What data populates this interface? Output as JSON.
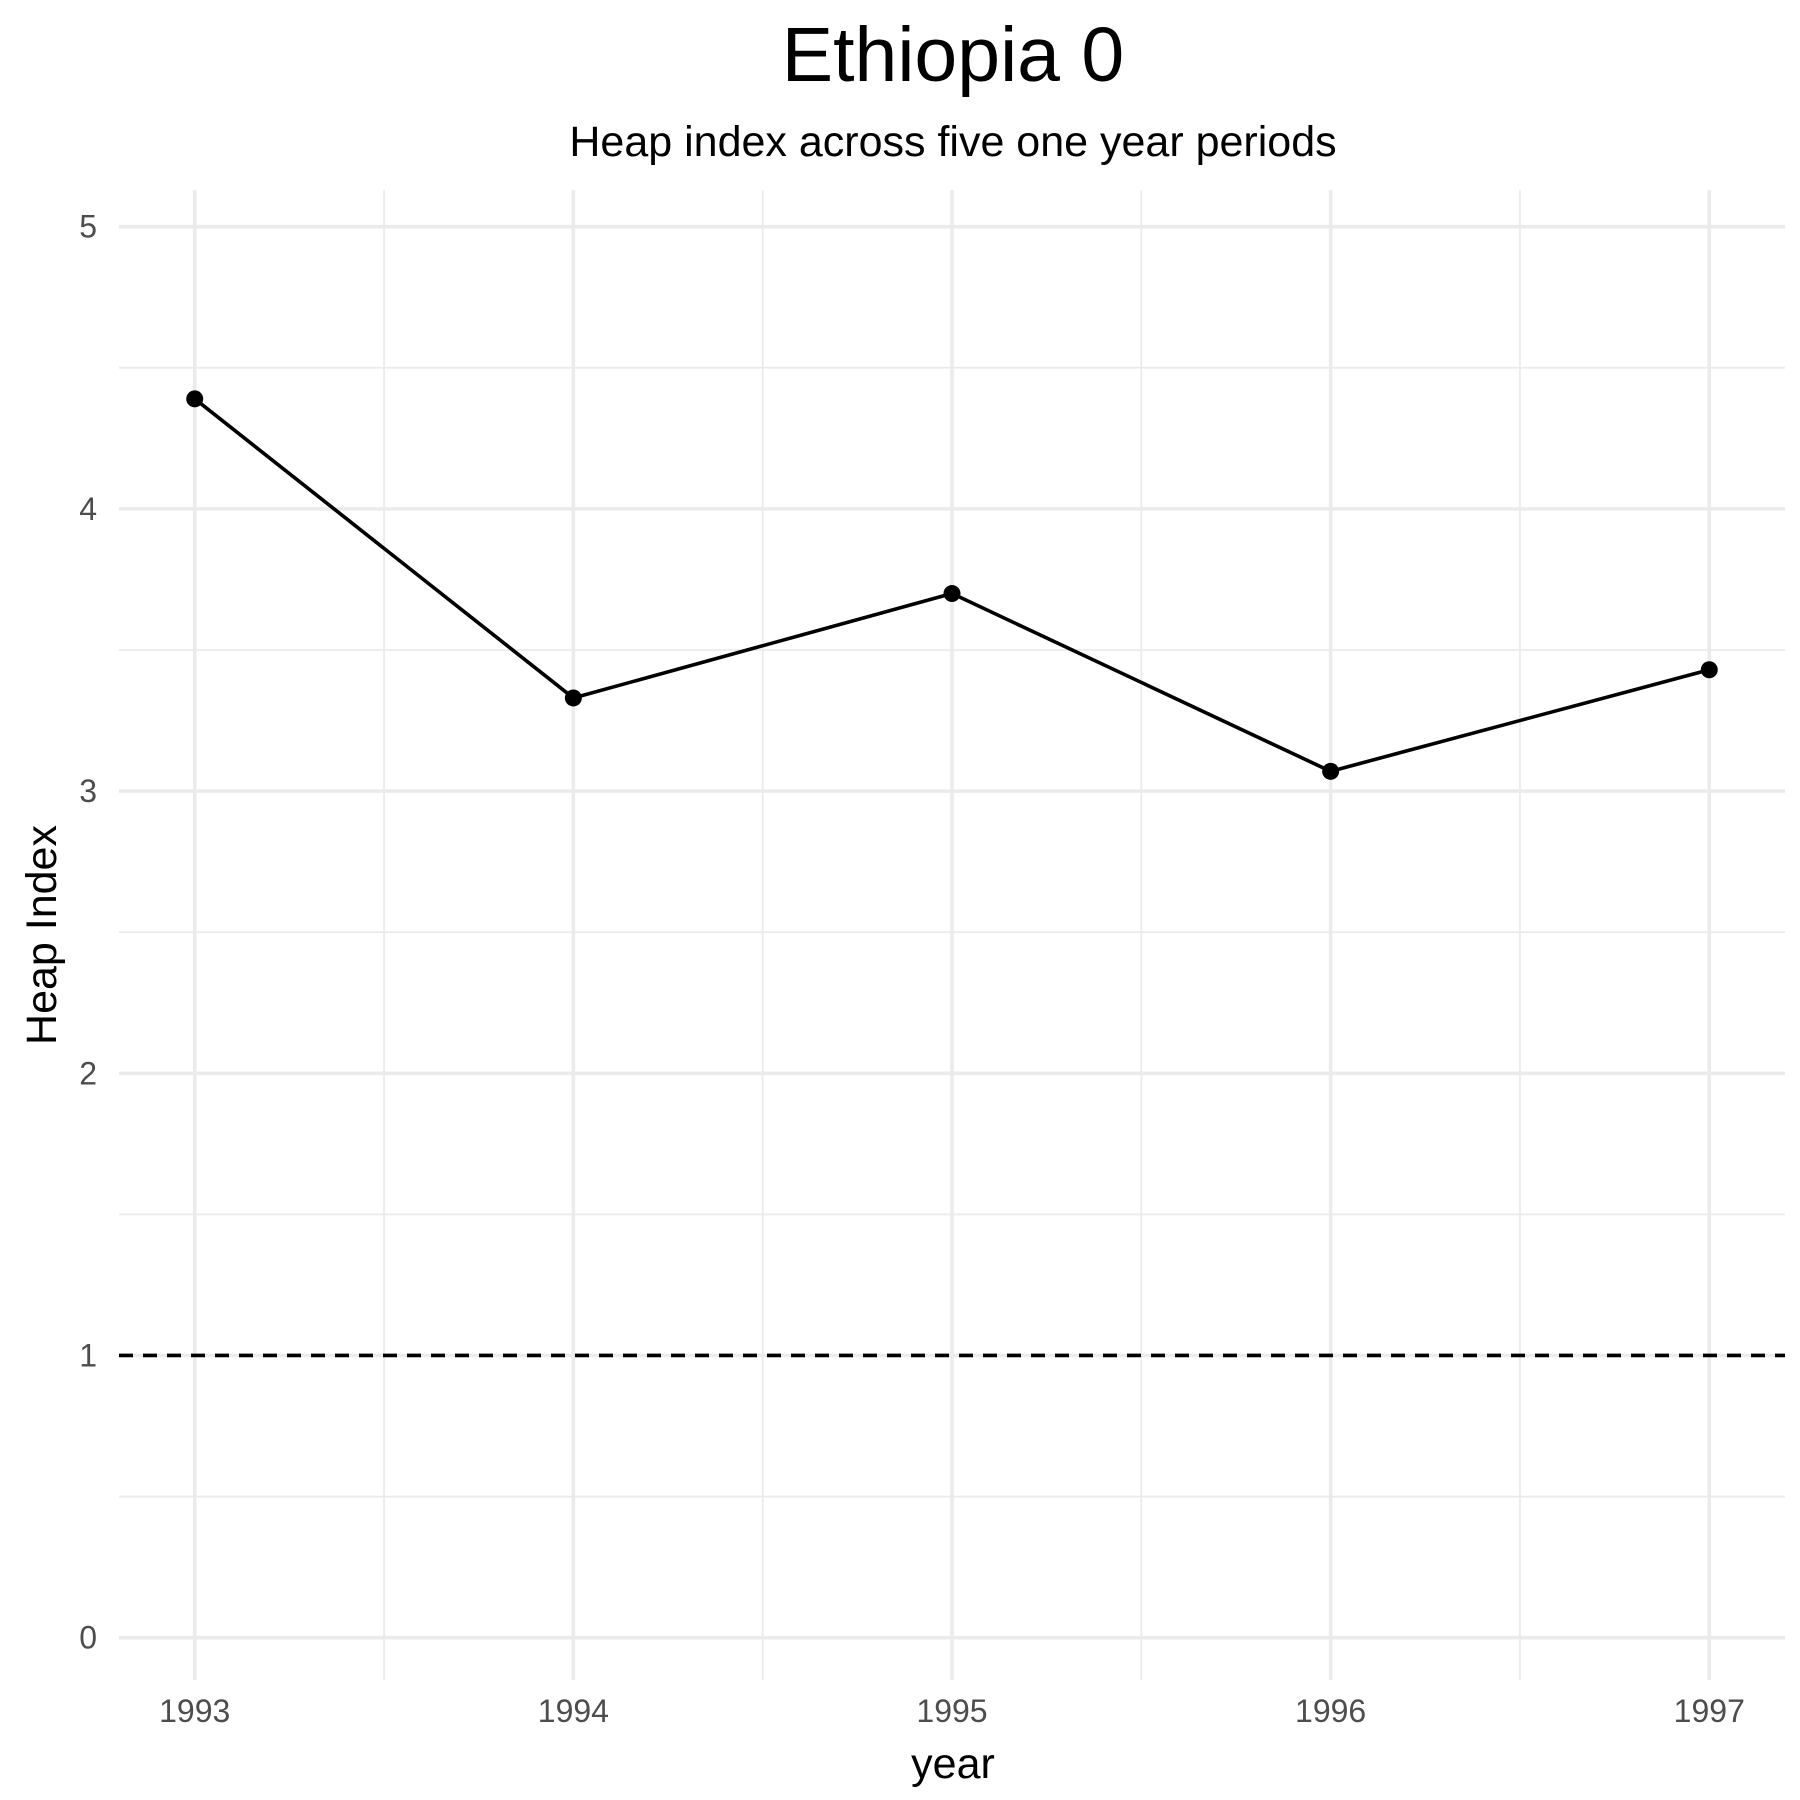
{
  "chart_data": {
    "type": "line",
    "title": "Ethiopia 0",
    "subtitle": "Heap index across five one year periods",
    "xlabel": "year",
    "ylabel": "Heap Index",
    "x": [
      1993,
      1994,
      1995,
      1996,
      1997
    ],
    "series": [
      {
        "values": [
          4.39,
          3.33,
          3.7,
          3.07,
          3.43
        ],
        "color": "#000000"
      }
    ],
    "xlim": [
      1992.8,
      1997.2
    ],
    "ylim": [
      -0.15,
      5.13
    ],
    "x_ticks": [
      1993,
      1994,
      1995,
      1996,
      1997
    ],
    "y_ticks": [
      0,
      1,
      2,
      3,
      4,
      5
    ],
    "reference_line": {
      "y": 1,
      "style": "dashed",
      "color": "#000000"
    },
    "grid": true,
    "legend": "none"
  }
}
